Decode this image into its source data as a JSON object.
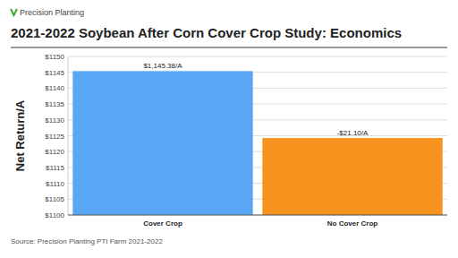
{
  "chart_data": {
    "type": "bar",
    "brand": "Precision Planting",
    "title": "2021-2022 Soybean After Corn Cover Crop Study: Economics",
    "y_label": "Net Return/A",
    "source": "Source: Precision Planting PTI Farm 2021-2022",
    "categories": [
      "Cover Crop",
      "No Cover Crop"
    ],
    "values": [
      1145.38,
      1124.28
    ],
    "value_labels": [
      "$1,145.38/A",
      null
    ],
    "colors": [
      "#5aa8f5",
      "#f7931e"
    ],
    "annotations": [
      {
        "text": "-$21.10/A",
        "category": "No Cover Crop"
      }
    ],
    "data_labels": true,
    "ylim": [
      1100,
      1150
    ],
    "yticks": [
      {
        "value": 1100,
        "label": "$1100"
      },
      {
        "value": 1105,
        "label": "$1105"
      },
      {
        "value": 1110,
        "label": "$1110"
      },
      {
        "value": 1115,
        "label": "$1115"
      },
      {
        "value": 1120,
        "label": "$1120"
      },
      {
        "value": 1125,
        "label": "$1125"
      },
      {
        "value": 1130,
        "label": "$1130"
      },
      {
        "value": 1135,
        "label": "$1135"
      },
      {
        "value": 1140,
        "label": "$1140"
      },
      {
        "value": 1145,
        "label": "$1145"
      },
      {
        "value": 1150,
        "label": "$1150"
      }
    ],
    "grid": true
  }
}
